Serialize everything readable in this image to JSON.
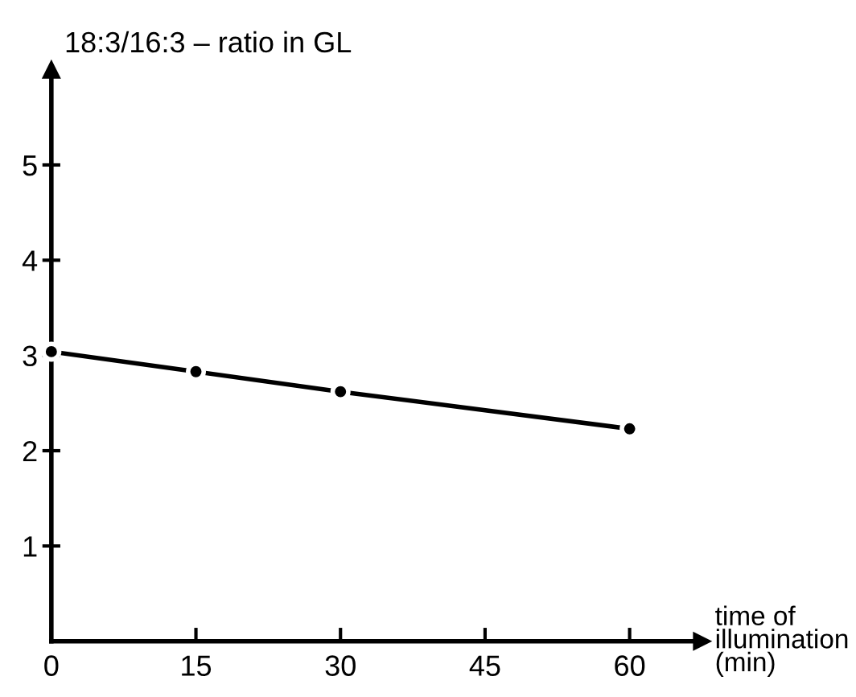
{
  "chart_data": {
    "type": "line",
    "ylabel": "18:3/16:3 – ratio in GL",
    "xlabel": "time of\nillumination\n(min)",
    "x": [
      0,
      15,
      30,
      60
    ],
    "series": [
      {
        "color": "#000000",
        "values": [
          3.04,
          2.83,
          2.62,
          2.23
        ]
      }
    ],
    "xlim": [
      0,
      67.5
    ],
    "ylim": [
      0,
      6
    ],
    "xticks": [
      0,
      15,
      30,
      45,
      60
    ],
    "yticks": [
      1,
      2,
      3,
      4,
      5
    ],
    "marker": "circle",
    "line_style": "solid",
    "grid": false,
    "legend": false
  }
}
